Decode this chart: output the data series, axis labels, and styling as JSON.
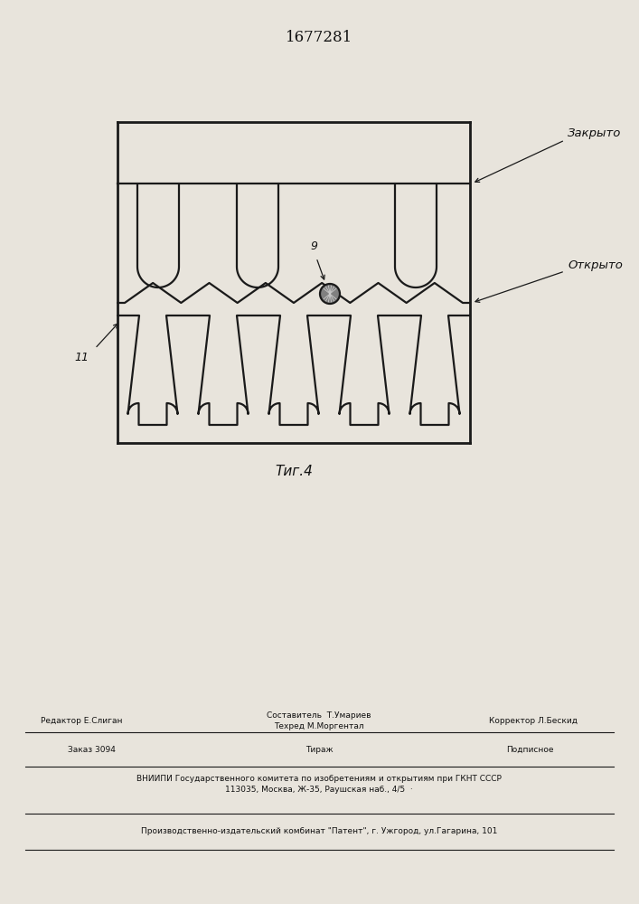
{
  "title": "1677281",
  "fig_label": "Τиг.4",
  "label_11": "11",
  "label_9": "9",
  "label_zakryto": "Закрыто",
  "label_otkryto": "Открыто",
  "bg_color": "#e8e4dc",
  "line_color": "#1a1a1a",
  "font_color": "#111111",
  "footer_redaktor": "Редактор Е.Слиган",
  "footer_sestavitel": "Составитель  Т.Умариев",
  "footer_tehred": "Техред М.Моргентал",
  "footer_korrektor": "Корректор Л.Бескид",
  "footer_zakaz": "Заказ 3094",
  "footer_tirazh": "Тираж",
  "footer_podpisnoe": "Подписное",
  "footer_vniip": "ВНИИПИ Государственного комитета по изобретениям и открытиям при ГКНТ СССР",
  "footer_addr": "113035, Москва, Ж-35, Раушская наб., 4/5  ·",
  "footer_patent": "Производственно-издательский комбинат \"Патент\", г. Ужгород, ул.Гагарина, 101"
}
